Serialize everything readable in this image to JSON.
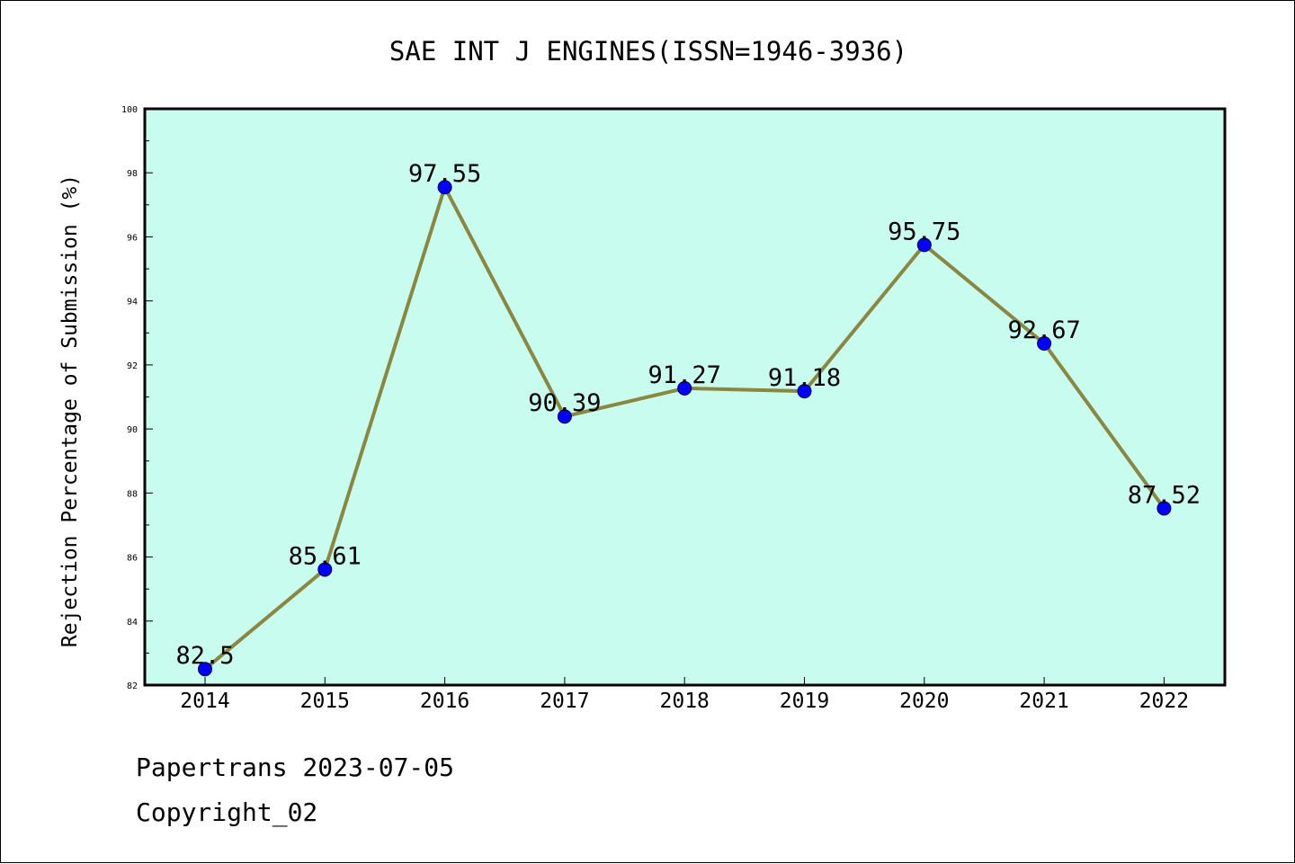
{
  "chart_data": {
    "type": "line",
    "title": "SAE INT J ENGINES(ISSN=1946-3936)",
    "xlabel": "",
    "ylabel": "Rejection Percentage of Submission (%)",
    "categories": [
      "2014",
      "2015",
      "2016",
      "2017",
      "2018",
      "2019",
      "2020",
      "2021",
      "2022"
    ],
    "series": [
      {
        "values": [
          82.5,
          85.61,
          97.55,
          90.39,
          91.27,
          91.18,
          95.75,
          92.67,
          87.52
        ]
      }
    ],
    "data_labels": [
      "82.5",
      "85.61",
      "97.55",
      "90.39",
      "91.27",
      "91.18",
      "95.75",
      "92.67",
      "87.52"
    ],
    "ylim": [
      82,
      100
    ],
    "yticks": [
      "82",
      "84",
      "86",
      "88",
      "90",
      "92",
      "94",
      "96",
      "98",
      "100"
    ],
    "grid": false,
    "colors": {
      "plot_background": "#c8fcee",
      "line": "#8b8640",
      "marker": "#0000ff"
    }
  },
  "footer": {
    "line1": "Papertrans 2023-07-05",
    "line2": "Copyright_02"
  }
}
